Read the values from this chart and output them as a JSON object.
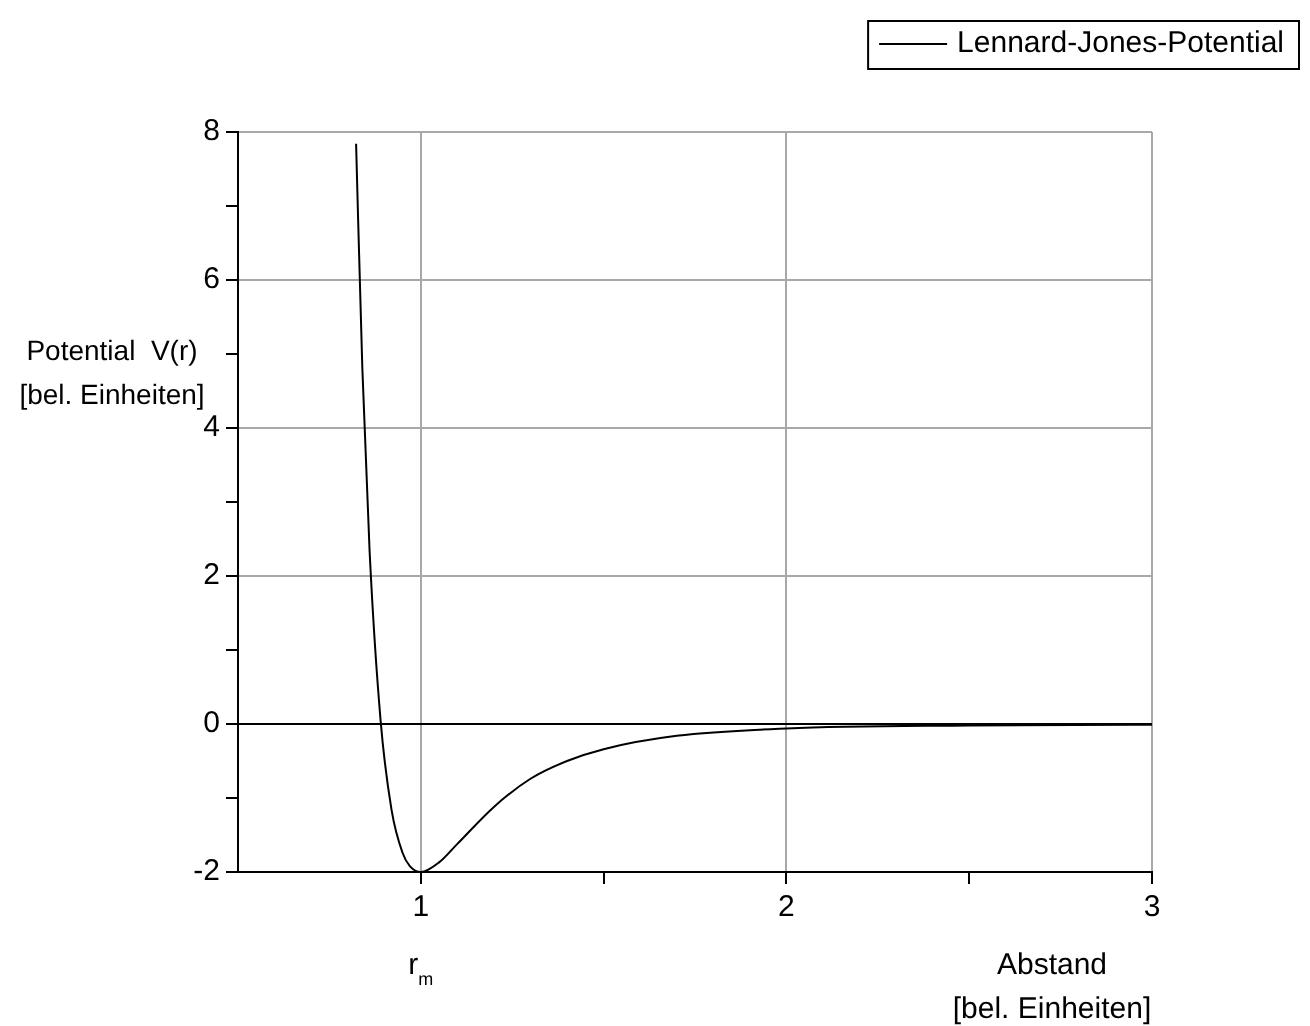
{
  "chart_data": {
    "type": "line",
    "xlabel": "Abstand\n[bel. Einheiten]",
    "ylabel": "Potential  V(r)\n[bel. Einheiten]",
    "x": [
      0.823,
      0.84,
      0.86,
      0.89,
      0.92,
      0.95,
      0.97,
      1,
      1.05,
      1.1,
      1.2,
      1.3,
      1.4,
      1.5,
      1.7,
      2,
      2.5,
      3
    ],
    "series": [
      {
        "name": "Lennard-Jones-Potential",
        "color": "#000000",
        "values": [
          7.84,
          4.82,
          2.33,
          0.05,
          -1.16,
          -1.74,
          -1.92,
          -2,
          -1.87,
          -1.62,
          -1.12,
          -0.74,
          -0.5,
          -0.34,
          -0.16,
          -0.06,
          -0.02,
          -0.01
        ]
      }
    ],
    "xlim": [
      0.5,
      3
    ],
    "xticks": [
      1,
      {
        "value": 1.5,
        "label": null
      },
      2,
      {
        "value": 2.5,
        "label": null
      },
      3
    ],
    "ylim": [
      -2,
      8
    ],
    "yticks": [
      -2,
      {
        "value": -1,
        "label": null
      },
      0,
      {
        "value": 1,
        "label": null
      },
      2,
      {
        "value": 3,
        "label": null
      },
      4,
      {
        "value": 5,
        "label": null
      },
      6,
      {
        "value": 7,
        "label": null
      },
      8
    ],
    "ref_lines": [
      {
        "axis": "y",
        "value": 0,
        "color": "#000000"
      }
    ],
    "annotations": [
      {
        "text": "r$_{m}$",
        "x": 1,
        "y": -2
      }
    ],
    "grid": true,
    "legend": "top right",
    "marker": "none",
    "line_style": "solid"
  }
}
